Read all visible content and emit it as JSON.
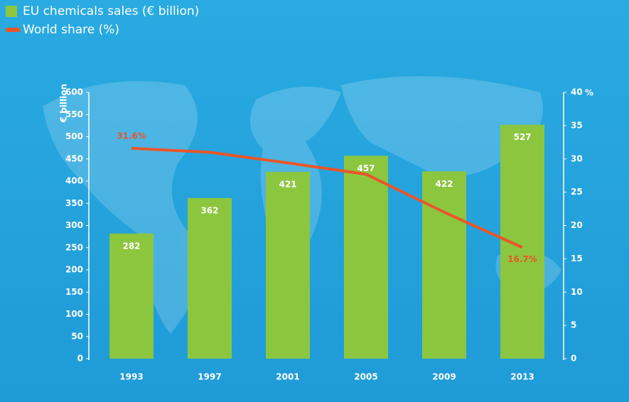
{
  "chart_data": {
    "type": "bar",
    "categories": [
      "1993",
      "1997",
      "2001",
      "2005",
      "2009",
      "2013"
    ],
    "series": [
      {
        "name": "EU chemicals sales (€ billion)",
        "type": "bar",
        "color": "#8cc63f",
        "axis": "y",
        "values": [
          282,
          362,
          421,
          457,
          422,
          527
        ]
      },
      {
        "name": "World share (%)",
        "type": "line",
        "color": "#e8562a",
        "axis": "y2",
        "values": [
          31.6,
          31,
          29.4,
          27.7,
          22,
          16.7
        ],
        "value_labels": [
          "31.6%",
          null,
          null,
          null,
          null,
          "16.7%"
        ]
      }
    ],
    "ylabel": "€ billion",
    "y2label": "%",
    "ylim": [
      0,
      600
    ],
    "yticks": [
      0,
      50,
      100,
      150,
      200,
      250,
      300,
      350,
      400,
      450,
      500,
      550,
      600
    ],
    "y2lim": [
      0,
      40
    ],
    "y2ticks": [
      0,
      5,
      10,
      15,
      20,
      25,
      30,
      35,
      40
    ],
    "legend": "top-left"
  }
}
